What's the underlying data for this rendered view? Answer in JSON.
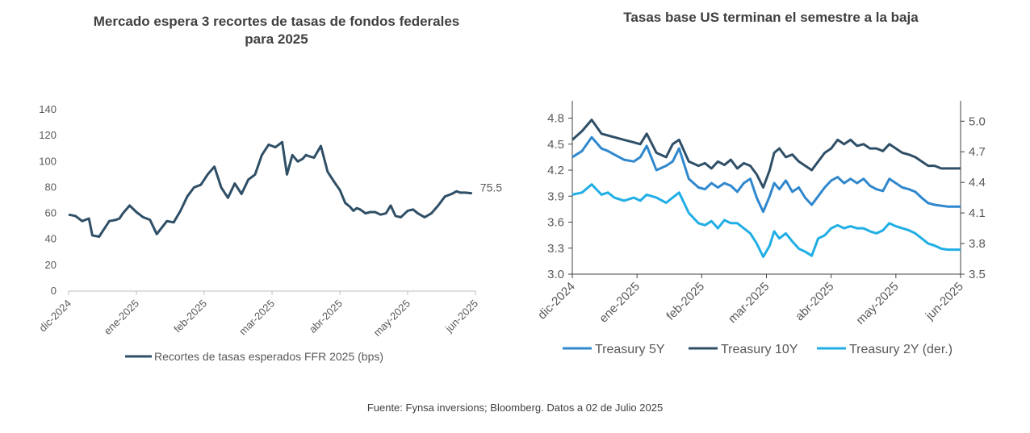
{
  "titles": {
    "left": "Mercado espera 3 recortes de tasas de fondos federales para 2025",
    "right": "Tasas base US terminan el semestre a la baja"
  },
  "source": "Fuente: Fynsa inversions; Bloomberg. Datos a 02 de Julio 2025",
  "chart_data": [
    {
      "type": "line",
      "title": "Mercado espera 3 recortes de tasas de fondos federales para 2025",
      "x_ticks": [
        "dic-2024",
        "ene-2025",
        "feb-2025",
        "mar-2025",
        "abr-2025",
        "may-2025",
        "jun-2025"
      ],
      "y_ticks": [
        "0",
        "20",
        "40",
        "60",
        "80",
        "100",
        "120",
        "140"
      ],
      "ylim": [
        0,
        140
      ],
      "grid": false,
      "legend": "bottom",
      "end_label": "75.5",
      "colors": {
        "series": "#2f4f67"
      },
      "series": [
        {
          "name": "Recortes de tasas esperados FFR 2025 (bps)",
          "x": [
            0.0,
            0.1,
            0.2,
            0.3,
            0.35,
            0.45,
            0.6,
            0.7,
            0.75,
            0.8,
            0.9,
            1.0,
            1.1,
            1.2,
            1.3,
            1.45,
            1.55,
            1.65,
            1.75,
            1.85,
            1.95,
            2.05,
            2.15,
            2.25,
            2.35,
            2.45,
            2.55,
            2.65,
            2.75,
            2.85,
            2.95,
            3.05,
            3.15,
            3.22,
            3.3,
            3.38,
            3.45,
            3.5,
            3.55,
            3.62,
            3.72,
            3.82,
            3.92,
            4.0,
            4.08,
            4.15,
            4.2,
            4.25,
            4.3,
            4.38,
            4.45,
            4.52,
            4.6,
            4.68,
            4.75,
            4.82,
            4.9,
            5.0,
            5.08,
            5.15,
            5.25,
            5.35,
            5.45,
            5.55,
            5.65,
            5.72,
            5.78,
            5.85,
            5.95
          ],
          "y": [
            59,
            58,
            54,
            56,
            43,
            42,
            54,
            55,
            56,
            60,
            66,
            61,
            57,
            55,
            44,
            54,
            53,
            62,
            73,
            80,
            82,
            90,
            96,
            80,
            72,
            83,
            75,
            86,
            90,
            105,
            113,
            111,
            115,
            90,
            105,
            100,
            102,
            105,
            104,
            103,
            112,
            92,
            84,
            78,
            68,
            65,
            62,
            64,
            63,
            60,
            61,
            61,
            59,
            60,
            66,
            58,
            57,
            62,
            63,
            60,
            57,
            60,
            66,
            73,
            75,
            77,
            76,
            76,
            75.5
          ]
        }
      ]
    },
    {
      "type": "line",
      "title": "Tasas base US terminan el semestre a la baja",
      "x_ticks": [
        "dic-2024",
        "ene-2025",
        "feb-2025",
        "mar-2025",
        "abr-2025",
        "may-2025",
        "jun-2025"
      ],
      "y_ticks_left": [
        "3.0",
        "3.3",
        "3.6",
        "3.9",
        "4.2",
        "4.5",
        "4.8"
      ],
      "y_ticks_right": [
        "3.5",
        "3.8",
        "4.1",
        "4.4",
        "4.7",
        "5.0"
      ],
      "ylim_left": [
        3.0,
        5.0
      ],
      "ylim_right": [
        3.5,
        5.2
      ],
      "grid": false,
      "legend": "bottom",
      "colors": {
        "Treasury 5Y": "#2f87cd",
        "Treasury 10Y": "#2f4f67",
        "Treasury 2Y (der.)": "#20aee5"
      },
      "series": [
        {
          "name": "Treasury 5Y",
          "axis": "left",
          "x": [
            0.0,
            0.15,
            0.3,
            0.45,
            0.55,
            0.65,
            0.8,
            0.95,
            1.05,
            1.15,
            1.3,
            1.45,
            1.55,
            1.65,
            1.8,
            1.95,
            2.05,
            2.15,
            2.25,
            2.35,
            2.45,
            2.55,
            2.65,
            2.75,
            2.85,
            2.95,
            3.05,
            3.12,
            3.2,
            3.3,
            3.4,
            3.5,
            3.6,
            3.7,
            3.8,
            3.9,
            4.0,
            4.1,
            4.2,
            4.3,
            4.4,
            4.5,
            4.6,
            4.7,
            4.8,
            4.9,
            5.0,
            5.1,
            5.2,
            5.3,
            5.4,
            5.5,
            5.6,
            5.7,
            5.8,
            5.9,
            6.0
          ],
          "y": [
            4.35,
            4.42,
            4.58,
            4.45,
            4.42,
            4.38,
            4.32,
            4.3,
            4.35,
            4.48,
            4.2,
            4.25,
            4.3,
            4.45,
            4.1,
            4.0,
            3.98,
            4.05,
            4.0,
            4.05,
            4.02,
            3.95,
            4.05,
            4.1,
            3.88,
            3.72,
            3.9,
            4.05,
            3.98,
            4.08,
            3.95,
            4.0,
            3.88,
            3.8,
            3.9,
            4.0,
            4.08,
            4.12,
            4.05,
            4.1,
            4.05,
            4.1,
            4.02,
            3.98,
            3.96,
            4.1,
            4.05,
            4.0,
            3.98,
            3.95,
            3.88,
            3.82,
            3.8,
            3.79,
            3.78,
            3.78,
            3.78
          ]
        },
        {
          "name": "Treasury 10Y",
          "axis": "left",
          "x": [
            0.0,
            0.15,
            0.3,
            0.45,
            0.55,
            0.65,
            0.8,
            0.95,
            1.05,
            1.15,
            1.3,
            1.45,
            1.55,
            1.65,
            1.8,
            1.95,
            2.05,
            2.15,
            2.25,
            2.35,
            2.45,
            2.55,
            2.65,
            2.75,
            2.85,
            2.95,
            3.05,
            3.12,
            3.2,
            3.3,
            3.4,
            3.5,
            3.6,
            3.7,
            3.8,
            3.9,
            4.0,
            4.1,
            4.2,
            4.3,
            4.4,
            4.5,
            4.6,
            4.7,
            4.8,
            4.9,
            5.0,
            5.1,
            5.2,
            5.3,
            5.4,
            5.5,
            5.6,
            5.7,
            5.8,
            5.9,
            6.0
          ],
          "y": [
            4.55,
            4.65,
            4.78,
            4.62,
            4.6,
            4.58,
            4.55,
            4.52,
            4.5,
            4.62,
            4.4,
            4.35,
            4.5,
            4.55,
            4.3,
            4.25,
            4.28,
            4.22,
            4.3,
            4.26,
            4.32,
            4.22,
            4.28,
            4.25,
            4.15,
            4.0,
            4.2,
            4.4,
            4.45,
            4.35,
            4.38,
            4.3,
            4.25,
            4.2,
            4.3,
            4.4,
            4.45,
            4.55,
            4.5,
            4.55,
            4.48,
            4.5,
            4.45,
            4.45,
            4.42,
            4.5,
            4.45,
            4.4,
            4.38,
            4.35,
            4.3,
            4.25,
            4.25,
            4.22,
            4.22,
            4.22,
            4.22
          ]
        },
        {
          "name": "Treasury 2Y (der.)",
          "axis": "right",
          "x": [
            0.0,
            0.15,
            0.3,
            0.45,
            0.55,
            0.65,
            0.8,
            0.95,
            1.05,
            1.15,
            1.3,
            1.45,
            1.55,
            1.65,
            1.8,
            1.95,
            2.05,
            2.15,
            2.25,
            2.35,
            2.45,
            2.55,
            2.65,
            2.75,
            2.85,
            2.95,
            3.05,
            3.12,
            3.2,
            3.3,
            3.4,
            3.5,
            3.6,
            3.7,
            3.8,
            3.9,
            4.0,
            4.1,
            4.2,
            4.3,
            4.4,
            4.5,
            4.6,
            4.7,
            4.8,
            4.9,
            5.0,
            5.1,
            5.2,
            5.3,
            5.4,
            5.5,
            5.6,
            5.7,
            5.8,
            5.9,
            6.0
          ],
          "y": [
            4.28,
            4.3,
            4.38,
            4.28,
            4.3,
            4.25,
            4.22,
            4.25,
            4.22,
            4.28,
            4.25,
            4.2,
            4.25,
            4.3,
            4.1,
            4.0,
            3.98,
            4.02,
            3.95,
            4.03,
            4.0,
            4.0,
            3.95,
            3.9,
            3.8,
            3.67,
            3.78,
            3.92,
            3.85,
            3.9,
            3.82,
            3.75,
            3.72,
            3.68,
            3.85,
            3.88,
            3.95,
            3.98,
            3.95,
            3.97,
            3.95,
            3.95,
            3.92,
            3.9,
            3.93,
            4.0,
            3.97,
            3.95,
            3.93,
            3.9,
            3.85,
            3.8,
            3.78,
            3.75,
            3.74,
            3.74,
            3.74
          ]
        }
      ]
    }
  ]
}
